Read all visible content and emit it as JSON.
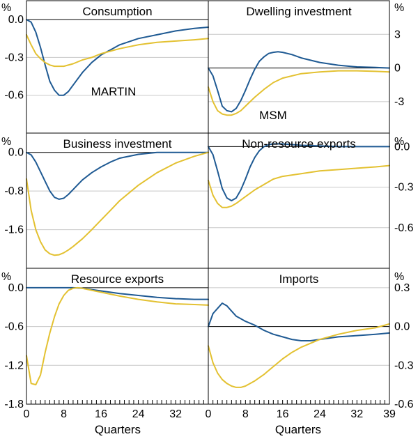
{
  "chart_data": {
    "type": "line",
    "xlabel": "Quarters",
    "xlim": [
      0,
      39
    ],
    "x_ticks": [
      0,
      8,
      16,
      24,
      32
    ],
    "x_ticks_right": [
      0,
      8,
      16,
      24,
      32,
      39
    ],
    "axis_unit": "%",
    "colors": {
      "MARTIN": "#1f5a93",
      "MSM": "#e3c131"
    },
    "series_labels": {
      "martin": "MARTIN",
      "msm": "MSM"
    },
    "panels": [
      {
        "title": "Consumption",
        "ylim": [
          -0.9,
          0.15
        ],
        "y_ticks": [
          0.0,
          -0.3,
          -0.6
        ],
        "y_tick_labels": [
          "0.0",
          "-0.3",
          "-0.6"
        ],
        "side": "left",
        "series": [
          {
            "name": "MARTIN",
            "x": [
              0,
              1,
              2,
              3,
              4,
              5,
              6,
              7,
              8,
              9,
              10,
              12,
              14,
              16,
              18,
              20,
              24,
              28,
              32,
              36,
              39
            ],
            "y": [
              0,
              -0.02,
              -0.1,
              -0.22,
              -0.36,
              -0.49,
              -0.56,
              -0.6,
              -0.6,
              -0.57,
              -0.52,
              -0.42,
              -0.34,
              -0.28,
              -0.24,
              -0.2,
              -0.15,
              -0.12,
              -0.09,
              -0.07,
              -0.06
            ]
          },
          {
            "name": "MSM",
            "x": [
              0,
              1,
              2,
              3,
              4,
              5,
              6,
              7,
              8,
              10,
              12,
              14,
              16,
              20,
              24,
              28,
              32,
              36,
              39
            ],
            "y": [
              -0.12,
              -0.2,
              -0.27,
              -0.31,
              -0.34,
              -0.36,
              -0.37,
              -0.37,
              -0.37,
              -0.35,
              -0.32,
              -0.3,
              -0.27,
              -0.23,
              -0.2,
              -0.18,
              -0.17,
              -0.16,
              -0.15
            ]
          }
        ]
      },
      {
        "title": "Dwelling investment",
        "ylim": [
          -5.8,
          6.0
        ],
        "y_ticks": [
          3,
          0,
          -3
        ],
        "y_tick_labels": [
          "3",
          "0",
          "-3"
        ],
        "side": "right",
        "series": [
          {
            "name": "MARTIN",
            "x": [
              0,
              1,
              2,
              3,
              4,
              5,
              6,
              7,
              8,
              9,
              10,
              11,
              12,
              13,
              14,
              15,
              16,
              18,
              20,
              24,
              28,
              32,
              36,
              39
            ],
            "y": [
              0,
              -0.7,
              -2.0,
              -3.4,
              -3.8,
              -3.9,
              -3.6,
              -2.9,
              -2.0,
              -1.0,
              -0.1,
              0.6,
              1.0,
              1.3,
              1.4,
              1.45,
              1.4,
              1.2,
              0.9,
              0.5,
              0.25,
              0.1,
              0.05,
              0
            ]
          },
          {
            "name": "MSM",
            "x": [
              0,
              1,
              2,
              3,
              4,
              5,
              6,
              7,
              8,
              10,
              12,
              14,
              16,
              20,
              24,
              28,
              32,
              36,
              39
            ],
            "y": [
              -1.7,
              -3.0,
              -3.8,
              -4.1,
              -4.2,
              -4.2,
              -4.05,
              -3.8,
              -3.4,
              -2.6,
              -1.9,
              -1.3,
              -0.9,
              -0.5,
              -0.35,
              -0.25,
              -0.25,
              -0.3,
              -0.35
            ]
          }
        ]
      },
      {
        "title": "Business investment",
        "ylim": [
          -2.4,
          0.4
        ],
        "y_ticks": [
          0.0,
          -0.8,
          -1.6
        ],
        "y_tick_labels": [
          "0.0",
          "-0.8",
          "-1.6"
        ],
        "side": "left",
        "series": [
          {
            "name": "MARTIN",
            "x": [
              0,
              1,
              2,
              3,
              4,
              5,
              6,
              7,
              8,
              9,
              10,
              11,
              12,
              14,
              16,
              18,
              20,
              24,
              28,
              32,
              36,
              39
            ],
            "y": [
              0,
              -0.05,
              -0.2,
              -0.4,
              -0.6,
              -0.8,
              -0.93,
              -0.97,
              -0.95,
              -0.87,
              -0.77,
              -0.67,
              -0.57,
              -0.42,
              -0.3,
              -0.2,
              -0.12,
              -0.04,
              0,
              0,
              0,
              0
            ]
          },
          {
            "name": "MSM",
            "x": [
              0,
              1,
              2,
              3,
              4,
              5,
              6,
              7,
              8,
              9,
              10,
              12,
              14,
              16,
              18,
              20,
              24,
              28,
              32,
              36,
              39
            ],
            "y": [
              -0.55,
              -1.2,
              -1.6,
              -1.85,
              -2.02,
              -2.1,
              -2.13,
              -2.12,
              -2.08,
              -2.02,
              -1.95,
              -1.79,
              -1.6,
              -1.4,
              -1.2,
              -1.0,
              -0.68,
              -0.42,
              -0.22,
              -0.08,
              0
            ]
          }
        ]
      },
      {
        "title": "Non-resource exports",
        "ylim": [
          -0.9,
          0.1
        ],
        "y_ticks": [
          0.0,
          -0.3,
          -0.6
        ],
        "y_tick_labels": [
          "0.0",
          "-0.3",
          "-0.6"
        ],
        "side": "right",
        "series": [
          {
            "name": "MARTIN",
            "x": [
              0,
              1,
              2,
              3,
              4,
              5,
              6,
              7,
              8,
              9,
              10,
              11,
              12,
              13,
              14,
              16,
              18,
              20,
              24,
              28,
              32,
              36,
              39
            ],
            "y": [
              0,
              -0.06,
              -0.18,
              -0.31,
              -0.38,
              -0.4,
              -0.38,
              -0.32,
              -0.24,
              -0.15,
              -0.08,
              -0.03,
              0,
              0.015,
              0.02,
              0.02,
              0.015,
              0.01,
              0.005,
              0,
              0,
              0,
              0
            ]
          },
          {
            "name": "MSM",
            "x": [
              0,
              1,
              2,
              3,
              4,
              5,
              6,
              8,
              10,
              12,
              14,
              16,
              20,
              24,
              28,
              32,
              36,
              39
            ],
            "y": [
              -0.25,
              -0.36,
              -0.42,
              -0.45,
              -0.45,
              -0.44,
              -0.42,
              -0.37,
              -0.32,
              -0.28,
              -0.24,
              -0.22,
              -0.2,
              -0.18,
              -0.17,
              -0.16,
              -0.15,
              -0.14
            ]
          }
        ]
      },
      {
        "title": "Resource exports",
        "ylim": [
          -1.8,
          0.3
        ],
        "y_ticks": [
          0.0,
          -0.6,
          -1.2,
          -1.8
        ],
        "y_tick_labels": [
          "0.0",
          "-0.6",
          "-1.2",
          "-1.8"
        ],
        "side": "left",
        "series": [
          {
            "name": "MARTIN",
            "x": [
              0,
              4,
              8,
              10,
              12,
              14,
              16,
              18,
              20,
              24,
              28,
              32,
              36,
              39
            ],
            "y": [
              0,
              0,
              0,
              0,
              -0.01,
              -0.03,
              -0.05,
              -0.07,
              -0.09,
              -0.12,
              -0.15,
              -0.17,
              -0.18,
              -0.18
            ]
          },
          {
            "name": "MSM",
            "x": [
              0,
              1,
              2,
              3,
              4,
              5,
              6,
              7,
              8,
              9,
              10,
              11,
              12,
              14,
              16,
              20,
              24,
              28,
              32,
              36,
              39
            ],
            "y": [
              -1.05,
              -1.48,
              -1.5,
              -1.35,
              -1.0,
              -0.7,
              -0.45,
              -0.25,
              -0.12,
              -0.04,
              -0.01,
              0,
              -0.01,
              -0.04,
              -0.07,
              -0.13,
              -0.18,
              -0.22,
              -0.25,
              -0.26,
              -0.27
            ]
          }
        ]
      },
      {
        "title": "Imports",
        "ylim": [
          -0.6,
          0.45
        ],
        "y_ticks": [
          0.3,
          0.0,
          -0.3,
          -0.6
        ],
        "y_tick_labels": [
          "0.3",
          "0.0",
          "-0.3",
          "-0.6"
        ],
        "side": "right",
        "series": [
          {
            "name": "MARTIN",
            "x": [
              0,
              1,
              2,
              3,
              4,
              5,
              6,
              7,
              8,
              10,
              12,
              14,
              16,
              18,
              20,
              22,
              24,
              26,
              28,
              32,
              36,
              39
            ],
            "y": [
              0,
              0.1,
              0.14,
              0.18,
              0.16,
              0.12,
              0.08,
              0.06,
              0.04,
              0.01,
              -0.03,
              -0.06,
              -0.08,
              -0.1,
              -0.11,
              -0.11,
              -0.1,
              -0.09,
              -0.08,
              -0.07,
              -0.06,
              -0.05
            ]
          },
          {
            "name": "MSM",
            "x": [
              0,
              1,
              2,
              3,
              4,
              5,
              6,
              7,
              8,
              10,
              12,
              14,
              16,
              18,
              20,
              24,
              28,
              32,
              36,
              39
            ],
            "y": [
              -0.15,
              -0.28,
              -0.36,
              -0.41,
              -0.44,
              -0.46,
              -0.47,
              -0.47,
              -0.46,
              -0.42,
              -0.37,
              -0.31,
              -0.25,
              -0.2,
              -0.16,
              -0.1,
              -0.06,
              -0.03,
              -0.01,
              0.02
            ]
          }
        ]
      }
    ]
  }
}
